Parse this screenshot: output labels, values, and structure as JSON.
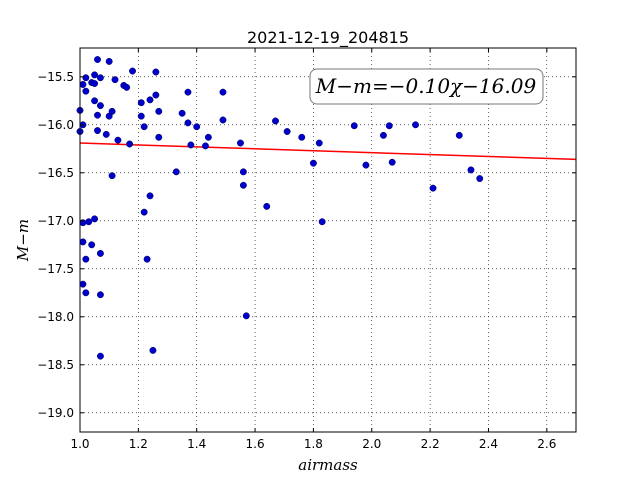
{
  "chart_data": {
    "type": "scatter",
    "title": "2021-12-19_204815",
    "xlabel": "airmass",
    "ylabel": "M−m",
    "xlim": [
      1.0,
      2.7
    ],
    "ylim": [
      -15.2,
      -19.2
    ],
    "y_inverted": true,
    "grid": true,
    "x_ticks": [
      1.0,
      1.2,
      1.4,
      1.6,
      1.8,
      2.0,
      2.2,
      2.4,
      2.6
    ],
    "x_tick_labels": [
      "1.0",
      "1.2",
      "1.4",
      "1.6",
      "1.8",
      "2.0",
      "2.2",
      "2.4",
      "2.6"
    ],
    "y_ticks": [
      -15.5,
      -16.0,
      -16.5,
      -17.0,
      -17.5,
      -18.0,
      -18.5,
      -19.0
    ],
    "y_tick_labels": [
      "−15.5",
      "−16.0",
      "−16.5",
      "−17.0",
      "−17.5",
      "−18.0",
      "−18.5",
      "−19.0"
    ],
    "annotation": "M−m=−0.10χ−16.09",
    "fit_line": {
      "slope": -0.1,
      "intercept": -16.09,
      "x_range": [
        1.0,
        2.7
      ],
      "color": "#ff0000"
    },
    "point_color": "#0000cc",
    "points": [
      {
        "x": 1.0,
        "y": -15.85
      },
      {
        "x": 1.0,
        "y": -16.07
      },
      {
        "x": 1.01,
        "y": -16.0
      },
      {
        "x": 1.01,
        "y": -15.58
      },
      {
        "x": 1.01,
        "y": -17.02
      },
      {
        "x": 1.01,
        "y": -17.22
      },
      {
        "x": 1.02,
        "y": -17.4
      },
      {
        "x": 1.01,
        "y": -17.66
      },
      {
        "x": 1.02,
        "y": -17.75
      },
      {
        "x": 1.02,
        "y": -15.65
      },
      {
        "x": 1.02,
        "y": -15.51
      },
      {
        "x": 1.03,
        "y": -17.01
      },
      {
        "x": 1.04,
        "y": -15.56
      },
      {
        "x": 1.04,
        "y": -17.25
      },
      {
        "x": 1.05,
        "y": -15.48
      },
      {
        "x": 1.05,
        "y": -15.57
      },
      {
        "x": 1.05,
        "y": -15.75
      },
      {
        "x": 1.05,
        "y": -16.98
      },
      {
        "x": 1.06,
        "y": -15.32
      },
      {
        "x": 1.06,
        "y": -15.9
      },
      {
        "x": 1.06,
        "y": -16.06
      },
      {
        "x": 1.07,
        "y": -15.51
      },
      {
        "x": 1.07,
        "y": -15.8
      },
      {
        "x": 1.07,
        "y": -17.34
      },
      {
        "x": 1.07,
        "y": -17.77
      },
      {
        "x": 1.07,
        "y": -18.41
      },
      {
        "x": 1.09,
        "y": -16.1
      },
      {
        "x": 1.1,
        "y": -15.34
      },
      {
        "x": 1.1,
        "y": -15.91
      },
      {
        "x": 1.11,
        "y": -15.86
      },
      {
        "x": 1.11,
        "y": -16.53
      },
      {
        "x": 1.12,
        "y": -15.53
      },
      {
        "x": 1.13,
        "y": -16.16
      },
      {
        "x": 1.15,
        "y": -15.59
      },
      {
        "x": 1.16,
        "y": -15.61
      },
      {
        "x": 1.17,
        "y": -16.2
      },
      {
        "x": 1.18,
        "y": -15.44
      },
      {
        "x": 1.21,
        "y": -15.77
      },
      {
        "x": 1.21,
        "y": -15.91
      },
      {
        "x": 1.22,
        "y": -16.02
      },
      {
        "x": 1.22,
        "y": -16.91
      },
      {
        "x": 1.23,
        "y": -17.4
      },
      {
        "x": 1.24,
        "y": -15.74
      },
      {
        "x": 1.24,
        "y": -16.74
      },
      {
        "x": 1.25,
        "y": -18.35
      },
      {
        "x": 1.26,
        "y": -15.69
      },
      {
        "x": 1.26,
        "y": -15.45
      },
      {
        "x": 1.27,
        "y": -15.86
      },
      {
        "x": 1.27,
        "y": -16.13
      },
      {
        "x": 1.33,
        "y": -16.49
      },
      {
        "x": 1.35,
        "y": -15.88
      },
      {
        "x": 1.37,
        "y": -15.66
      },
      {
        "x": 1.37,
        "y": -15.98
      },
      {
        "x": 1.38,
        "y": -16.21
      },
      {
        "x": 1.4,
        "y": -16.02
      },
      {
        "x": 1.43,
        "y": -16.22
      },
      {
        "x": 1.44,
        "y": -16.13
      },
      {
        "x": 1.49,
        "y": -15.66
      },
      {
        "x": 1.49,
        "y": -15.95
      },
      {
        "x": 1.55,
        "y": -16.19
      },
      {
        "x": 1.56,
        "y": -16.49
      },
      {
        "x": 1.56,
        "y": -16.63
      },
      {
        "x": 1.57,
        "y": -17.99
      },
      {
        "x": 1.64,
        "y": -16.85
      },
      {
        "x": 1.67,
        "y": -15.96
      },
      {
        "x": 1.71,
        "y": -16.07
      },
      {
        "x": 1.76,
        "y": -16.13
      },
      {
        "x": 1.8,
        "y": -16.4
      },
      {
        "x": 1.82,
        "y": -16.19
      },
      {
        "x": 1.83,
        "y": -17.01
      },
      {
        "x": 1.94,
        "y": -16.01
      },
      {
        "x": 1.98,
        "y": -16.42
      },
      {
        "x": 2.04,
        "y": -16.11
      },
      {
        "x": 2.06,
        "y": -16.01
      },
      {
        "x": 2.07,
        "y": -16.39
      },
      {
        "x": 2.15,
        "y": -16.0
      },
      {
        "x": 2.21,
        "y": -16.66
      },
      {
        "x": 2.3,
        "y": -16.11
      },
      {
        "x": 2.34,
        "y": -16.47
      },
      {
        "x": 2.37,
        "y": -16.56
      }
    ]
  }
}
